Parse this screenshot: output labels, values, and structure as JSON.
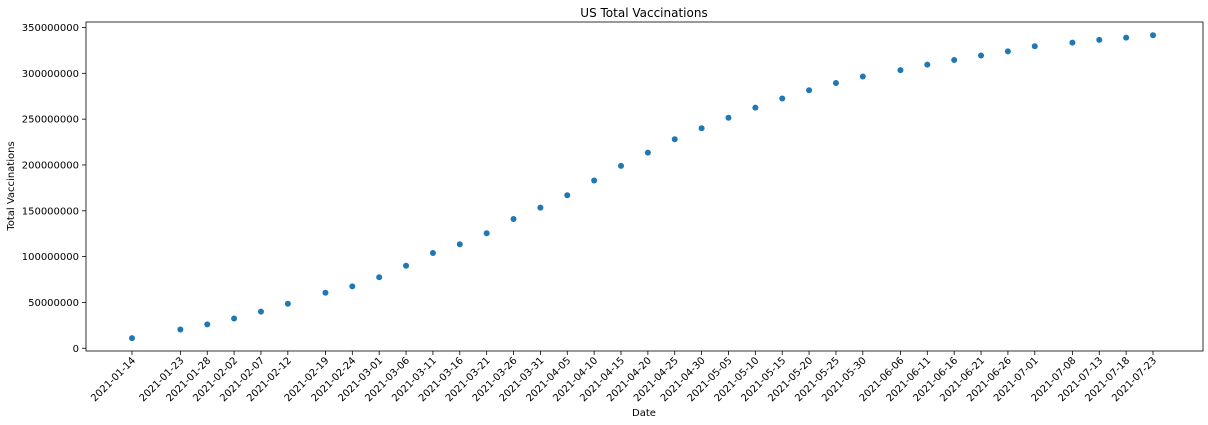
{
  "chart_data": {
    "type": "scatter",
    "title": "US Total Vaccinations",
    "xlabel": "Date",
    "ylabel": "Total Vaccinations",
    "x_ticks": [
      "2021-01-14",
      "2021-01-23",
      "2021-01-28",
      "2021-02-02",
      "2021-02-07",
      "2021-02-12",
      "2021-02-19",
      "2021-02-24",
      "2021-03-01",
      "2021-03-06",
      "2021-03-11",
      "2021-03-16",
      "2021-03-21",
      "2021-03-26",
      "2021-03-31",
      "2021-04-05",
      "2021-04-10",
      "2021-04-15",
      "2021-04-20",
      "2021-04-25",
      "2021-04-30",
      "2021-05-05",
      "2021-05-10",
      "2021-05-15",
      "2021-05-20",
      "2021-05-25",
      "2021-05-30",
      "2021-06-06",
      "2021-06-11",
      "2021-06-16",
      "2021-06-21",
      "2021-06-26",
      "2021-07-01",
      "2021-07-08",
      "2021-07-13",
      "2021-07-18",
      "2021-07-23"
    ],
    "y_ticks": [
      0,
      50000000,
      100000000,
      150000000,
      200000000,
      250000000,
      300000000,
      350000000
    ],
    "ylim": [
      -3000000,
      356000000
    ],
    "color": "#1f77b4",
    "grid": false,
    "series": [
      {
        "points": [
          [
            "2021-01-14",
            11000000
          ],
          [
            "2021-01-23",
            20500000
          ],
          [
            "2021-01-28",
            26000000
          ],
          [
            "2021-02-02",
            32500000
          ],
          [
            "2021-02-07",
            40000000
          ],
          [
            "2021-02-12",
            48500000
          ],
          [
            "2021-02-19",
            60500000
          ],
          [
            "2021-02-24",
            67500000
          ],
          [
            "2021-03-01",
            77500000
          ],
          [
            "2021-03-06",
            90000000
          ],
          [
            "2021-03-11",
            104000000
          ],
          [
            "2021-03-16",
            113500000
          ],
          [
            "2021-03-21",
            125500000
          ],
          [
            "2021-03-26",
            141000000
          ],
          [
            "2021-03-31",
            153500000
          ],
          [
            "2021-04-05",
            167000000
          ],
          [
            "2021-04-10",
            183000000
          ],
          [
            "2021-04-15",
            199000000
          ],
          [
            "2021-04-20",
            213500000
          ],
          [
            "2021-04-25",
            228000000
          ],
          [
            "2021-04-30",
            240000000
          ],
          [
            "2021-05-05",
            251500000
          ],
          [
            "2021-05-10",
            262500000
          ],
          [
            "2021-05-15",
            272500000
          ],
          [
            "2021-05-20",
            281500000
          ],
          [
            "2021-05-25",
            289500000
          ],
          [
            "2021-05-30",
            296500000
          ],
          [
            "2021-06-06",
            303500000
          ],
          [
            "2021-06-11",
            309500000
          ],
          [
            "2021-06-16",
            314500000
          ],
          [
            "2021-06-21",
            319500000
          ],
          [
            "2021-06-26",
            324000000
          ],
          [
            "2021-07-01",
            329500000
          ],
          [
            "2021-07-08",
            333500000
          ],
          [
            "2021-07-13",
            336500000
          ],
          [
            "2021-07-18",
            339000000
          ],
          [
            "2021-07-23",
            341500000
          ]
        ]
      }
    ]
  }
}
